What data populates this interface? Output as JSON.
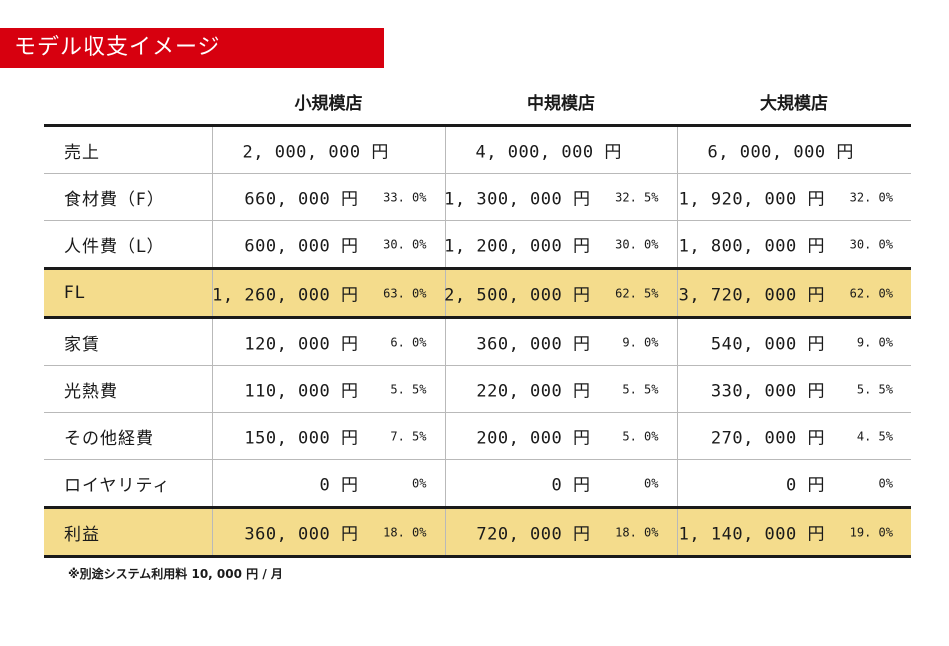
{
  "title": "モデル収支イメージ",
  "columns": [
    "小規模店",
    "中規模店",
    "大規模店"
  ],
  "rows": [
    {
      "label": "売上",
      "values": [
        {
          "amount": "2, 000, 000 円",
          "pct": ""
        },
        {
          "amount": "4, 000, 000 円",
          "pct": ""
        },
        {
          "amount": "6, 000, 000 円",
          "pct": ""
        }
      ]
    },
    {
      "label": "食材費（F）",
      "values": [
        {
          "amount": "660, 000 円",
          "pct": "33. 0%"
        },
        {
          "amount": "1, 300, 000 円",
          "pct": "32. 5%"
        },
        {
          "amount": "1, 920, 000 円",
          "pct": "32. 0%"
        }
      ]
    },
    {
      "label": "人件費（L）",
      "values": [
        {
          "amount": "600, 000 円",
          "pct": "30. 0%"
        },
        {
          "amount": "1, 200, 000 円",
          "pct": "30. 0%"
        },
        {
          "amount": "1, 800, 000 円",
          "pct": "30. 0%"
        }
      ]
    },
    {
      "label": "FL",
      "values": [
        {
          "amount": "1, 260, 000 円",
          "pct": "63. 0%"
        },
        {
          "amount": "2, 500, 000 円",
          "pct": "62. 5%"
        },
        {
          "amount": "3, 720, 000 円",
          "pct": "62. 0%"
        }
      ]
    },
    {
      "label": "家賃",
      "values": [
        {
          "amount": "120, 000 円",
          "pct": "6. 0%"
        },
        {
          "amount": "360, 000 円",
          "pct": "9. 0%"
        },
        {
          "amount": "540, 000 円",
          "pct": "9. 0%"
        }
      ]
    },
    {
      "label": "光熱費",
      "values": [
        {
          "amount": "110, 000 円",
          "pct": "5. 5%"
        },
        {
          "amount": "220, 000 円",
          "pct": "5. 5%"
        },
        {
          "amount": "330, 000 円",
          "pct": "5. 5%"
        }
      ]
    },
    {
      "label": "その他経費",
      "values": [
        {
          "amount": "150, 000 円",
          "pct": "7. 5%"
        },
        {
          "amount": "200, 000 円",
          "pct": "5. 0%"
        },
        {
          "amount": "270, 000 円",
          "pct": "4. 5%"
        }
      ]
    },
    {
      "label": "ロイヤリティ",
      "values": [
        {
          "amount": "0 円",
          "pct": "0%"
        },
        {
          "amount": "0 円",
          "pct": "0%"
        },
        {
          "amount": "0 円",
          "pct": "0%"
        }
      ]
    },
    {
      "label": "利益",
      "values": [
        {
          "amount": "360, 000 円",
          "pct": "18. 0%"
        },
        {
          "amount": "720, 000 円",
          "pct": "18. 0%"
        },
        {
          "amount": "1, 140, 000 円",
          "pct": "19. 0%"
        }
      ]
    }
  ],
  "footnote": "※別途システム利用料 10, 000 円 / 月",
  "colors": {
    "title_bg": "#d7000f",
    "highlight_bg": "#f4dc8c",
    "rule": "#1a1a1a",
    "grid": "#b9b9b9"
  }
}
